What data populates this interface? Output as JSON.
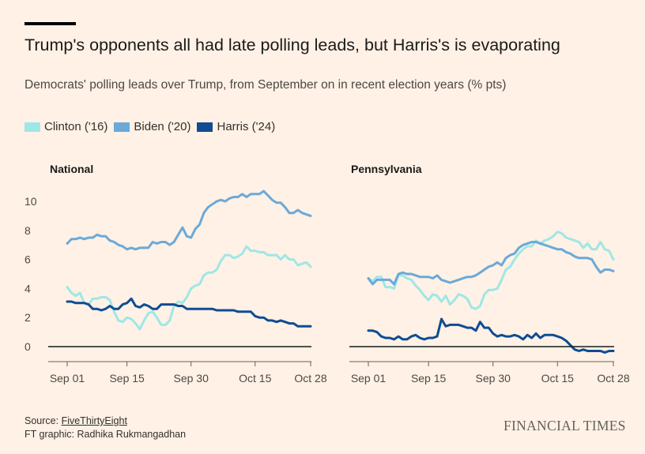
{
  "header": {
    "title": "Trump's opponents all had late polling leads, but Harris's is evaporating",
    "subtitle": "Democrats' polling leads over Trump, from September on in recent election years (% pts)"
  },
  "legend": [
    {
      "label": "Clinton ('16)",
      "color": "#9ee7e6"
    },
    {
      "label": "Biden ('20)",
      "color": "#6ba9d9"
    },
    {
      "label": "Harris ('24)",
      "color": "#0f4c92"
    }
  ],
  "footer": {
    "source_prefix": "Source: ",
    "source_name": "FiveThirtyEight",
    "credit": "FT graphic: Radhika Rukmangadhan",
    "brand": "FINANCIAL TIMES"
  },
  "chart_data": [
    {
      "type": "line",
      "title": "National",
      "x_ticks": [
        "Sep 01",
        "Sep 15",
        "Sep 30",
        "Oct 15",
        "Oct 28"
      ],
      "x_tick_days": [
        0,
        14,
        29,
        44,
        57
      ],
      "x_range": [
        0,
        57
      ],
      "y_ticks": [
        0,
        2,
        4,
        6,
        8,
        10
      ],
      "ylim": [
        -1,
        11
      ],
      "grid": false,
      "series": [
        {
          "name": "Clinton ('16)",
          "color": "#9ee7e6",
          "x": [
            0,
            1,
            2,
            3,
            4,
            5,
            6,
            7,
            8,
            9,
            10,
            11,
            12,
            13,
            14,
            15,
            16,
            17,
            18,
            19,
            20,
            21,
            22,
            23,
            24,
            25,
            26,
            27,
            28,
            29,
            30,
            31,
            32,
            33,
            34,
            35,
            36,
            37,
            38,
            39,
            40,
            41,
            42,
            43,
            44,
            45,
            46,
            47,
            48,
            49,
            50,
            51,
            52,
            53,
            54,
            55,
            56,
            57
          ],
          "values": [
            4.1,
            3.7,
            3.5,
            3.7,
            3.0,
            2.9,
            3.3,
            3.3,
            3.4,
            3.4,
            3.2,
            2.4,
            1.8,
            1.7,
            2.0,
            1.9,
            1.6,
            1.2,
            1.8,
            2.3,
            2.4,
            2.0,
            1.5,
            1.5,
            1.8,
            2.8,
            3.1,
            3.0,
            3.4,
            4.0,
            4.2,
            4.3,
            4.9,
            5.1,
            5.1,
            5.3,
            5.9,
            6.3,
            6.3,
            6.1,
            6.2,
            6.4,
            6.9,
            6.6,
            6.6,
            6.5,
            6.5,
            6.3,
            6.3,
            6.3,
            6.0,
            6.3,
            6.0,
            6.0,
            5.6,
            5.7,
            5.8,
            5.5
          ]
        },
        {
          "name": "Biden ('20)",
          "color": "#6ba9d9",
          "x": [
            0,
            1,
            2,
            3,
            4,
            5,
            6,
            7,
            8,
            9,
            10,
            11,
            12,
            13,
            14,
            15,
            16,
            17,
            18,
            19,
            20,
            21,
            22,
            23,
            24,
            25,
            26,
            27,
            28,
            29,
            30,
            31,
            32,
            33,
            34,
            35,
            36,
            37,
            38,
            39,
            40,
            41,
            42,
            43,
            44,
            45,
            46,
            47,
            48,
            49,
            50,
            51,
            52,
            53,
            54,
            55,
            56,
            57
          ],
          "values": [
            7.1,
            7.4,
            7.4,
            7.5,
            7.4,
            7.5,
            7.5,
            7.7,
            7.6,
            7.6,
            7.3,
            7.2,
            7.0,
            6.9,
            6.7,
            6.8,
            6.7,
            6.8,
            6.8,
            6.8,
            7.2,
            7.1,
            7.2,
            7.2,
            7.0,
            7.2,
            7.7,
            8.2,
            7.6,
            7.5,
            8.1,
            8.4,
            9.2,
            9.6,
            9.8,
            10.0,
            10.1,
            10.0,
            10.2,
            10.3,
            10.3,
            10.5,
            10.3,
            10.5,
            10.5,
            10.5,
            10.7,
            10.4,
            10.1,
            9.9,
            9.9,
            9.6,
            9.2,
            9.2,
            9.4,
            9.2,
            9.1,
            9.0
          ]
        },
        {
          "name": "Harris ('24)",
          "color": "#0f4c92",
          "x": [
            0,
            1,
            2,
            3,
            4,
            5,
            6,
            7,
            8,
            9,
            10,
            11,
            12,
            13,
            14,
            15,
            16,
            17,
            18,
            19,
            20,
            21,
            22,
            23,
            24,
            25,
            26,
            27,
            28,
            29,
            30,
            31,
            32,
            33,
            34,
            35,
            36,
            37,
            38,
            39,
            40,
            41,
            42,
            43,
            44,
            45,
            46,
            47,
            48,
            49,
            50,
            51,
            52,
            53,
            54,
            55,
            56,
            57
          ],
          "values": [
            3.1,
            3.1,
            3.0,
            3.0,
            3.0,
            2.9,
            2.6,
            2.6,
            2.5,
            2.6,
            2.8,
            2.6,
            2.6,
            2.9,
            3.0,
            3.3,
            2.8,
            2.7,
            2.9,
            2.8,
            2.6,
            2.6,
            2.9,
            2.9,
            2.9,
            2.9,
            2.8,
            2.8,
            2.6,
            2.6,
            2.6,
            2.6,
            2.6,
            2.6,
            2.6,
            2.5,
            2.5,
            2.5,
            2.5,
            2.5,
            2.4,
            2.4,
            2.4,
            2.4,
            2.1,
            2.0,
            2.0,
            1.8,
            1.8,
            1.7,
            1.8,
            1.7,
            1.6,
            1.6,
            1.4,
            1.4,
            1.4,
            1.4
          ]
        }
      ]
    },
    {
      "type": "line",
      "title": "Pennsylvania",
      "x_ticks": [
        "Sep 01",
        "Sep 15",
        "Sep 30",
        "Oct 15",
        "Oct 28"
      ],
      "x_tick_days": [
        0,
        14,
        29,
        44,
        57
      ],
      "x_range": [
        0,
        57
      ],
      "y_ticks": [
        0,
        2,
        4,
        6,
        8,
        10
      ],
      "ylim": [
        -1,
        11
      ],
      "grid": false,
      "series": [
        {
          "name": "Clinton ('16)",
          "color": "#9ee7e6",
          "x": [
            0,
            1,
            2,
            3,
            4,
            5,
            6,
            7,
            8,
            9,
            10,
            11,
            12,
            13,
            14,
            15,
            16,
            17,
            18,
            19,
            20,
            21,
            22,
            23,
            24,
            25,
            26,
            27,
            28,
            29,
            30,
            31,
            32,
            33,
            34,
            35,
            36,
            37,
            38,
            39,
            40,
            41,
            42,
            43,
            44,
            45,
            46,
            47,
            48,
            49,
            50,
            51,
            52,
            53,
            54,
            55,
            56,
            57
          ],
          "values": [
            4.7,
            4.5,
            4.8,
            4.8,
            4.1,
            4.1,
            4.0,
            4.9,
            4.9,
            4.7,
            4.6,
            4.2,
            3.9,
            3.5,
            3.2,
            3.6,
            3.5,
            3.1,
            3.5,
            2.9,
            3.2,
            3.6,
            3.5,
            3.3,
            2.7,
            2.6,
            2.8,
            3.6,
            3.9,
            3.9,
            4.0,
            4.6,
            5.3,
            5.5,
            6.0,
            6.4,
            6.7,
            6.9,
            6.9,
            7.3,
            7.1,
            7.3,
            7.4,
            7.6,
            7.9,
            7.8,
            7.5,
            7.4,
            7.3,
            7.2,
            6.8,
            7.1,
            6.7,
            6.7,
            7.2,
            6.7,
            6.6,
            6.0
          ]
        },
        {
          "name": "Biden ('20)",
          "color": "#6ba9d9",
          "x": [
            0,
            1,
            2,
            3,
            4,
            5,
            6,
            7,
            8,
            9,
            10,
            11,
            12,
            13,
            14,
            15,
            16,
            17,
            18,
            19,
            20,
            21,
            22,
            23,
            24,
            25,
            26,
            27,
            28,
            29,
            30,
            31,
            32,
            33,
            34,
            35,
            36,
            37,
            38,
            39,
            40,
            41,
            42,
            43,
            44,
            45,
            46,
            47,
            48,
            49,
            50,
            51,
            52,
            53,
            54,
            55,
            56,
            57
          ],
          "values": [
            4.7,
            4.3,
            4.6,
            4.6,
            4.6,
            4.6,
            4.3,
            5.0,
            5.1,
            5.0,
            5.0,
            4.9,
            4.8,
            4.8,
            4.8,
            4.7,
            4.9,
            4.6,
            4.5,
            4.4,
            4.5,
            4.6,
            4.7,
            4.8,
            4.8,
            4.9,
            5.1,
            5.3,
            5.5,
            5.6,
            5.8,
            5.6,
            6.1,
            6.3,
            6.4,
            6.8,
            7.0,
            7.1,
            7.2,
            7.2,
            7.1,
            7.0,
            6.9,
            6.8,
            6.7,
            6.7,
            6.5,
            6.4,
            6.2,
            6.1,
            6.1,
            6.1,
            6.0,
            5.5,
            5.1,
            5.3,
            5.3,
            5.2
          ]
        },
        {
          "name": "Harris ('24)",
          "color": "#0f4c92",
          "x": [
            0,
            1,
            2,
            3,
            4,
            5,
            6,
            7,
            8,
            9,
            10,
            11,
            12,
            13,
            14,
            15,
            16,
            17,
            18,
            19,
            20,
            21,
            22,
            23,
            24,
            25,
            26,
            27,
            28,
            29,
            30,
            31,
            32,
            33,
            34,
            35,
            36,
            37,
            38,
            39,
            40,
            41,
            42,
            43,
            44,
            45,
            46,
            47,
            48,
            49,
            50,
            51,
            52,
            53,
            54,
            55,
            56,
            57
          ],
          "values": [
            1.1,
            1.1,
            1.0,
            0.7,
            0.6,
            0.6,
            0.5,
            0.7,
            0.5,
            0.5,
            0.7,
            0.8,
            0.6,
            0.5,
            0.6,
            0.6,
            0.7,
            1.9,
            1.4,
            1.5,
            1.5,
            1.5,
            1.4,
            1.3,
            1.3,
            1.1,
            1.7,
            1.3,
            1.3,
            0.9,
            0.7,
            0.8,
            0.7,
            0.7,
            0.8,
            0.7,
            0.5,
            0.8,
            0.6,
            0.9,
            0.6,
            0.8,
            0.8,
            0.8,
            0.7,
            0.6,
            0.4,
            0.1,
            -0.2,
            -0.3,
            -0.2,
            -0.3,
            -0.3,
            -0.3,
            -0.3,
            -0.4,
            -0.3,
            -0.3
          ]
        }
      ]
    }
  ]
}
